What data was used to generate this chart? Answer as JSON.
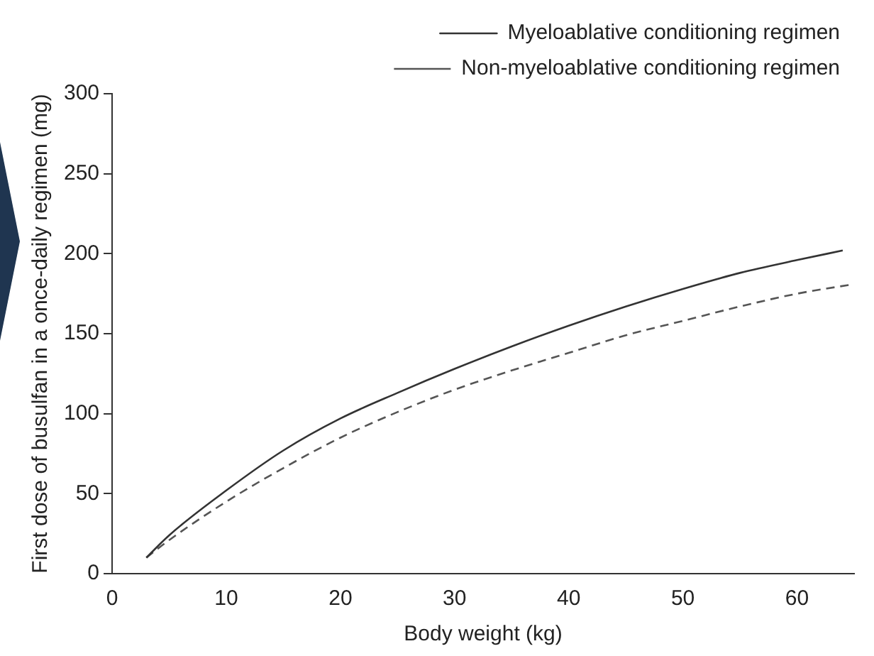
{
  "chart_data": {
    "type": "line",
    "xlabel": "Body weight (kg)",
    "ylabel": "First dose of busulfan in a once-daily regimen (mg)",
    "xlim": [
      0,
      65
    ],
    "xticks": [
      0,
      10,
      20,
      30,
      40,
      50,
      60
    ],
    "ylim": [
      0,
      300
    ],
    "yticks": [
      0,
      50,
      100,
      150,
      200,
      250,
      300
    ],
    "grid": false,
    "legend": "top right",
    "marker": "none",
    "series": [
      {
        "name": "Myeloablative conditioning regimen",
        "color": "#333333",
        "line_style": "solid",
        "x": [
          3,
          5,
          10,
          15,
          20,
          25,
          30,
          35,
          40,
          45,
          50,
          55,
          60,
          64
        ],
        "values": [
          10,
          24,
          52,
          77,
          97,
          113,
          128,
          142,
          155,
          167,
          178,
          188,
          196,
          202
        ]
      },
      {
        "name": "Non-myeloablative conditioning regimen",
        "color": "#555555",
        "line_style": "dashed",
        "x": [
          3,
          5,
          10,
          15,
          20,
          25,
          30,
          35,
          40,
          45,
          50,
          55,
          60,
          65
        ],
        "values": [
          10,
          21,
          45,
          66,
          85,
          101,
          115,
          127,
          138,
          149,
          158,
          167,
          175,
          181
        ]
      }
    ]
  }
}
